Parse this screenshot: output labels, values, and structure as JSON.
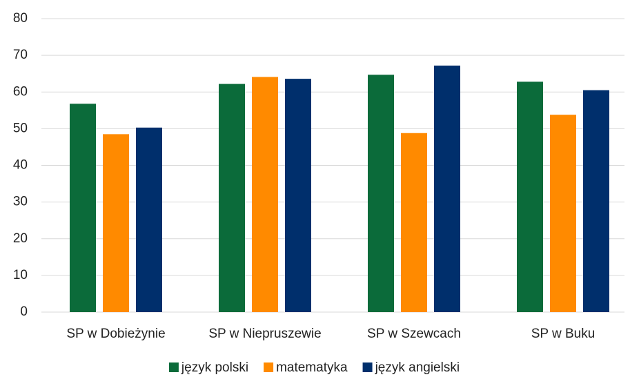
{
  "chart_data": {
    "type": "bar",
    "categories": [
      "SP w Dobieżynie",
      "SP w Niepruszewie",
      "SP w Szewcach",
      "SP w Buku"
    ],
    "series": [
      {
        "name": "język polski",
        "color": "#0b6b3a",
        "values": [
          56.8,
          62.2,
          64.7,
          62.8
        ]
      },
      {
        "name": "matematyka",
        "color": "#ff8a00",
        "values": [
          48.5,
          64.1,
          48.8,
          53.8
        ]
      },
      {
        "name": "język angielski",
        "color": "#002f6c",
        "values": [
          50.3,
          63.6,
          67.2,
          60.5
        ]
      }
    ],
    "ylim": [
      0,
      80
    ],
    "yticks": [
      0,
      10,
      20,
      30,
      40,
      50,
      60,
      70,
      80
    ],
    "grid": true,
    "legend": "bottom"
  }
}
